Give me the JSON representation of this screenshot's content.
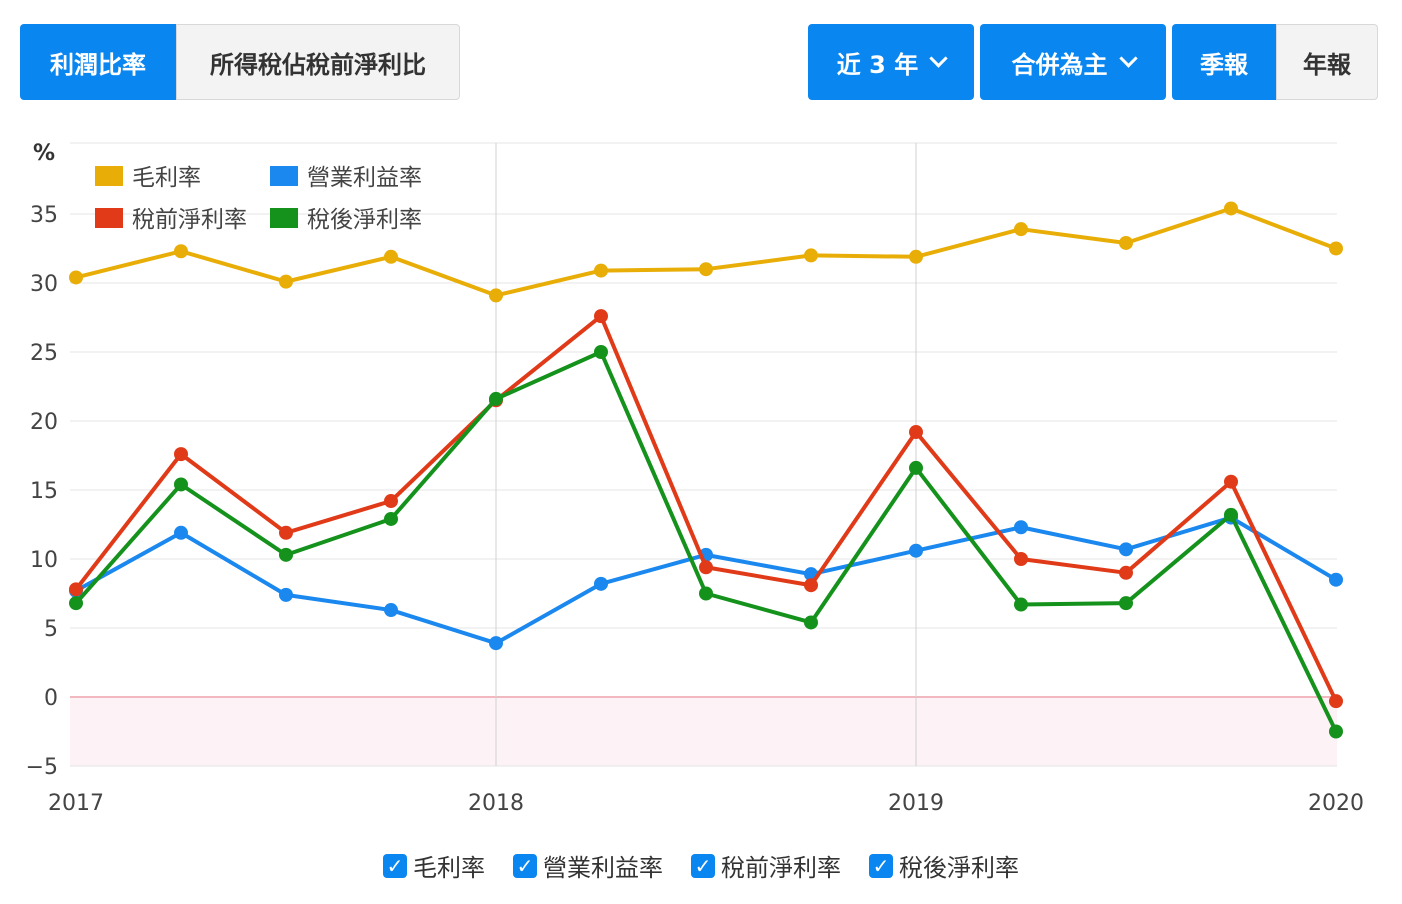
{
  "toolbar": {
    "tabs": [
      {
        "label": "利潤比率",
        "active": true
      },
      {
        "label": "所得稅佔稅前淨利比",
        "active": false
      }
    ],
    "period_label": "近 3 年",
    "scope_label": "合併為主",
    "freq": [
      {
        "label": "季報",
        "active": true
      },
      {
        "label": "年報",
        "active": false
      }
    ]
  },
  "chart_data": {
    "type": "line",
    "ylabel": "%",
    "ylim": [
      -5,
      37
    ],
    "yticks": [
      "35",
      "30",
      "25",
      "20",
      "15",
      "10",
      "5",
      "0",
      "−5"
    ],
    "ytick_values": [
      35,
      30,
      25,
      20,
      15,
      10,
      5,
      0,
      -5
    ],
    "xticks": [
      "2017",
      "2018",
      "2019",
      "2020"
    ],
    "xtick_positions": [
      0,
      4,
      8,
      12
    ],
    "x": [
      "2017Q1",
      "2017Q2",
      "2017Q3",
      "2017Q4",
      "2018Q1",
      "2018Q2",
      "2018Q3",
      "2018Q4",
      "2019Q1",
      "2019Q2",
      "2019Q3",
      "2019Q4",
      "2020Q1"
    ],
    "negative_band_color": "#fdf2f5",
    "zero_line_color": "#f2b8c0",
    "series": [
      {
        "name": "毛利率",
        "color": "#e8ae07",
        "values": [
          30.4,
          32.3,
          30.1,
          31.9,
          29.1,
          30.9,
          31.0,
          32.0,
          31.9,
          33.9,
          32.9,
          35.4,
          32.5
        ]
      },
      {
        "name": "營業利益率",
        "color": "#1a88ee",
        "values": [
          7.7,
          11.9,
          7.4,
          6.3,
          3.9,
          8.2,
          10.3,
          8.9,
          10.6,
          12.3,
          10.7,
          13.0,
          8.5
        ]
      },
      {
        "name": "稅前淨利率",
        "color": "#e03a18",
        "values": [
          7.8,
          17.6,
          11.9,
          14.2,
          21.5,
          27.6,
          9.4,
          8.1,
          19.2,
          10.0,
          9.0,
          15.6,
          -0.3
        ]
      },
      {
        "name": "稅後淨利率",
        "color": "#14921c",
        "values": [
          6.8,
          15.4,
          10.3,
          12.9,
          21.6,
          25.0,
          7.5,
          5.4,
          16.6,
          6.7,
          6.8,
          13.2,
          -2.5
        ]
      }
    ]
  },
  "bottom_legend": [
    {
      "label": "毛利率",
      "checked": true
    },
    {
      "label": "營業利益率",
      "checked": true
    },
    {
      "label": "稅前淨利率",
      "checked": true
    },
    {
      "label": "稅後淨利率",
      "checked": true
    }
  ]
}
